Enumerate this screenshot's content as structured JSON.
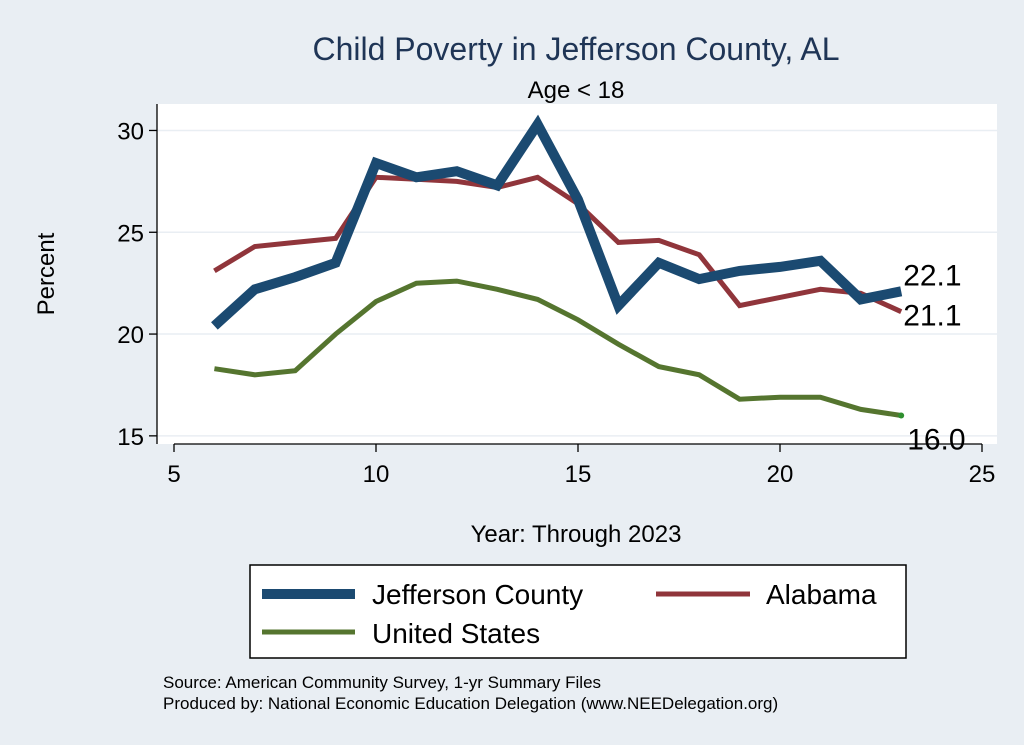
{
  "chart_data": {
    "type": "line",
    "title": "Child Poverty in Jefferson County, AL",
    "subtitle": "Age < 18",
    "xlabel": "Year: Through 2023",
    "ylabel": "Percent",
    "xlim": [
      5,
      25
    ],
    "ylim": [
      14.6,
      31.3
    ],
    "xticks": [
      5,
      10,
      15,
      20,
      25
    ],
    "yticks": [
      15,
      20,
      25,
      30
    ],
    "grid": true,
    "legend_position": "bottom",
    "series": [
      {
        "name": "Jefferson County",
        "color": "#1b4a71",
        "x": [
          6,
          7,
          8,
          9,
          10,
          11,
          12,
          13,
          14,
          15,
          16,
          17,
          18,
          19,
          20,
          21,
          22,
          23
        ],
        "values": [
          20.4,
          22.2,
          22.8,
          23.5,
          28.4,
          27.7,
          28.0,
          27.3,
          30.3,
          26.6,
          21.4,
          23.5,
          22.7,
          23.1,
          23.3,
          23.6,
          21.7,
          22.1
        ],
        "end_label": "22.1"
      },
      {
        "name": "Alabama",
        "color": "#90353b",
        "x": [
          6,
          7,
          8,
          9,
          10,
          11,
          12,
          13,
          14,
          15,
          16,
          17,
          18,
          19,
          20,
          21,
          22,
          23
        ],
        "values": [
          23.1,
          24.3,
          24.5,
          24.7,
          27.7,
          27.6,
          27.5,
          27.2,
          27.7,
          26.4,
          24.5,
          24.6,
          23.9,
          21.4,
          21.8,
          22.2,
          22.0,
          21.1
        ],
        "end_label": "21.1"
      },
      {
        "name": "United States",
        "color": "#55752f",
        "x": [
          6,
          7,
          8,
          9,
          10,
          11,
          12,
          13,
          14,
          15,
          16,
          17,
          18,
          19,
          20,
          21,
          22,
          23
        ],
        "values": [
          18.3,
          18.0,
          18.2,
          20.0,
          21.6,
          22.5,
          22.6,
          22.2,
          21.7,
          20.7,
          19.5,
          18.4,
          18.0,
          16.8,
          16.9,
          16.9,
          16.3,
          16.0
        ],
        "end_label": "16.0"
      }
    ],
    "notes": [
      "Source: American Community Survey, 1-yr Summary Files",
      "Produced by: National Economic Education Delegation (www.NEEDelegation.org)"
    ]
  }
}
